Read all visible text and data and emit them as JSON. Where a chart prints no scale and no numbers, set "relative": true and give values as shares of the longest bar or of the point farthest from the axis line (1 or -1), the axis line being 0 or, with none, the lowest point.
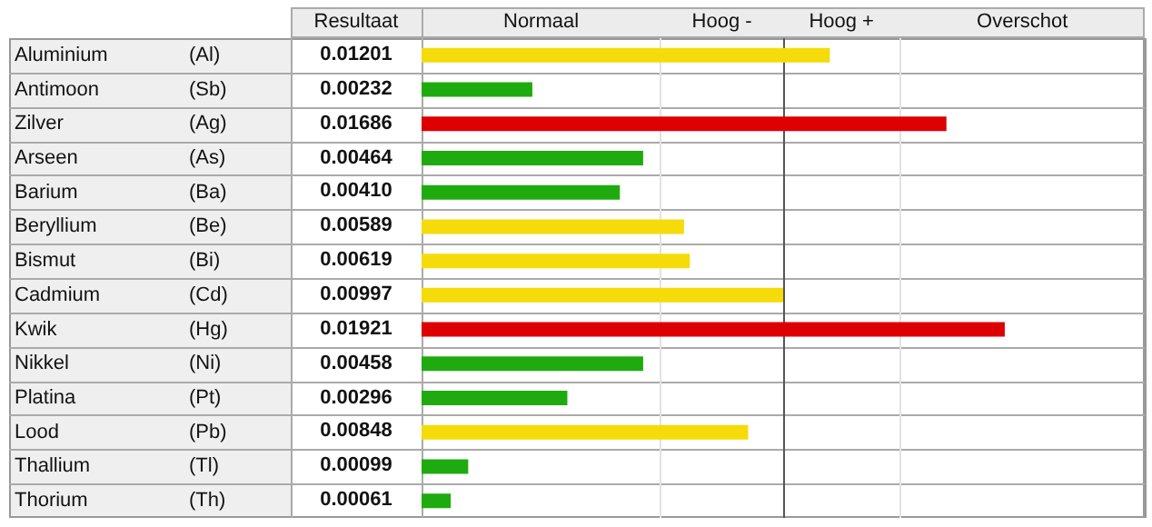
{
  "chart_data": {
    "type": "bar",
    "orientation": "horizontal",
    "relative": true,
    "categories": [
      "Aluminium (Al)",
      "Antimoon (Sb)",
      "Zilver (Ag)",
      "Arseen (As)",
      "Barium (Ba)",
      "Beryllium (Be)",
      "Bismut (Bi)",
      "Cadmium (Cd)",
      "Kwik (Hg)",
      "Nikkel (Ni)",
      "Platina (Pt)",
      "Lood (Pb)",
      "Thallium (Tl)",
      "Thorium (Th)"
    ],
    "values": [
      0.7,
      0.19,
      0.9,
      0.38,
      0.34,
      0.45,
      0.46,
      0.62,
      1,
      0.38,
      0.25,
      0.56,
      0.08,
      0.05
    ],
    "colors": [
      "#f5db0a",
      "#1fab0f",
      "#dd0000",
      "#1fab0f",
      "#1fab0f",
      "#f5db0a",
      "#f5db0a",
      "#f5db0a",
      "#dd0000",
      "#1fab0f",
      "#1fab0f",
      "#f5db0a",
      "#1fab0f",
      "#1fab0f"
    ],
    "annotations": [
      "Resultaat",
      "0.01201",
      "0.00232",
      "0.01686",
      "0.00464",
      "0.00410",
      "0.00589",
      "0.00619",
      "0.00997",
      "0.01921",
      "0.00458",
      "0.00296",
      "0.00848",
      "0.00099",
      "0.00061",
      "Normaal",
      "Hoog -",
      "Hoog +",
      "Overschot"
    ],
    "ref_lines": [
      {
        "axis": "x",
        "value": 0.41,
        "color": "#e2e2e2"
      },
      {
        "axis": "x",
        "value": 0.62,
        "color": "#555555"
      },
      {
        "axis": "x",
        "value": 0.82,
        "color": "#e2e2e2"
      },
      {
        "axis": "x",
        "value": 1.24,
        "color": "#999999"
      }
    ]
  }
}
